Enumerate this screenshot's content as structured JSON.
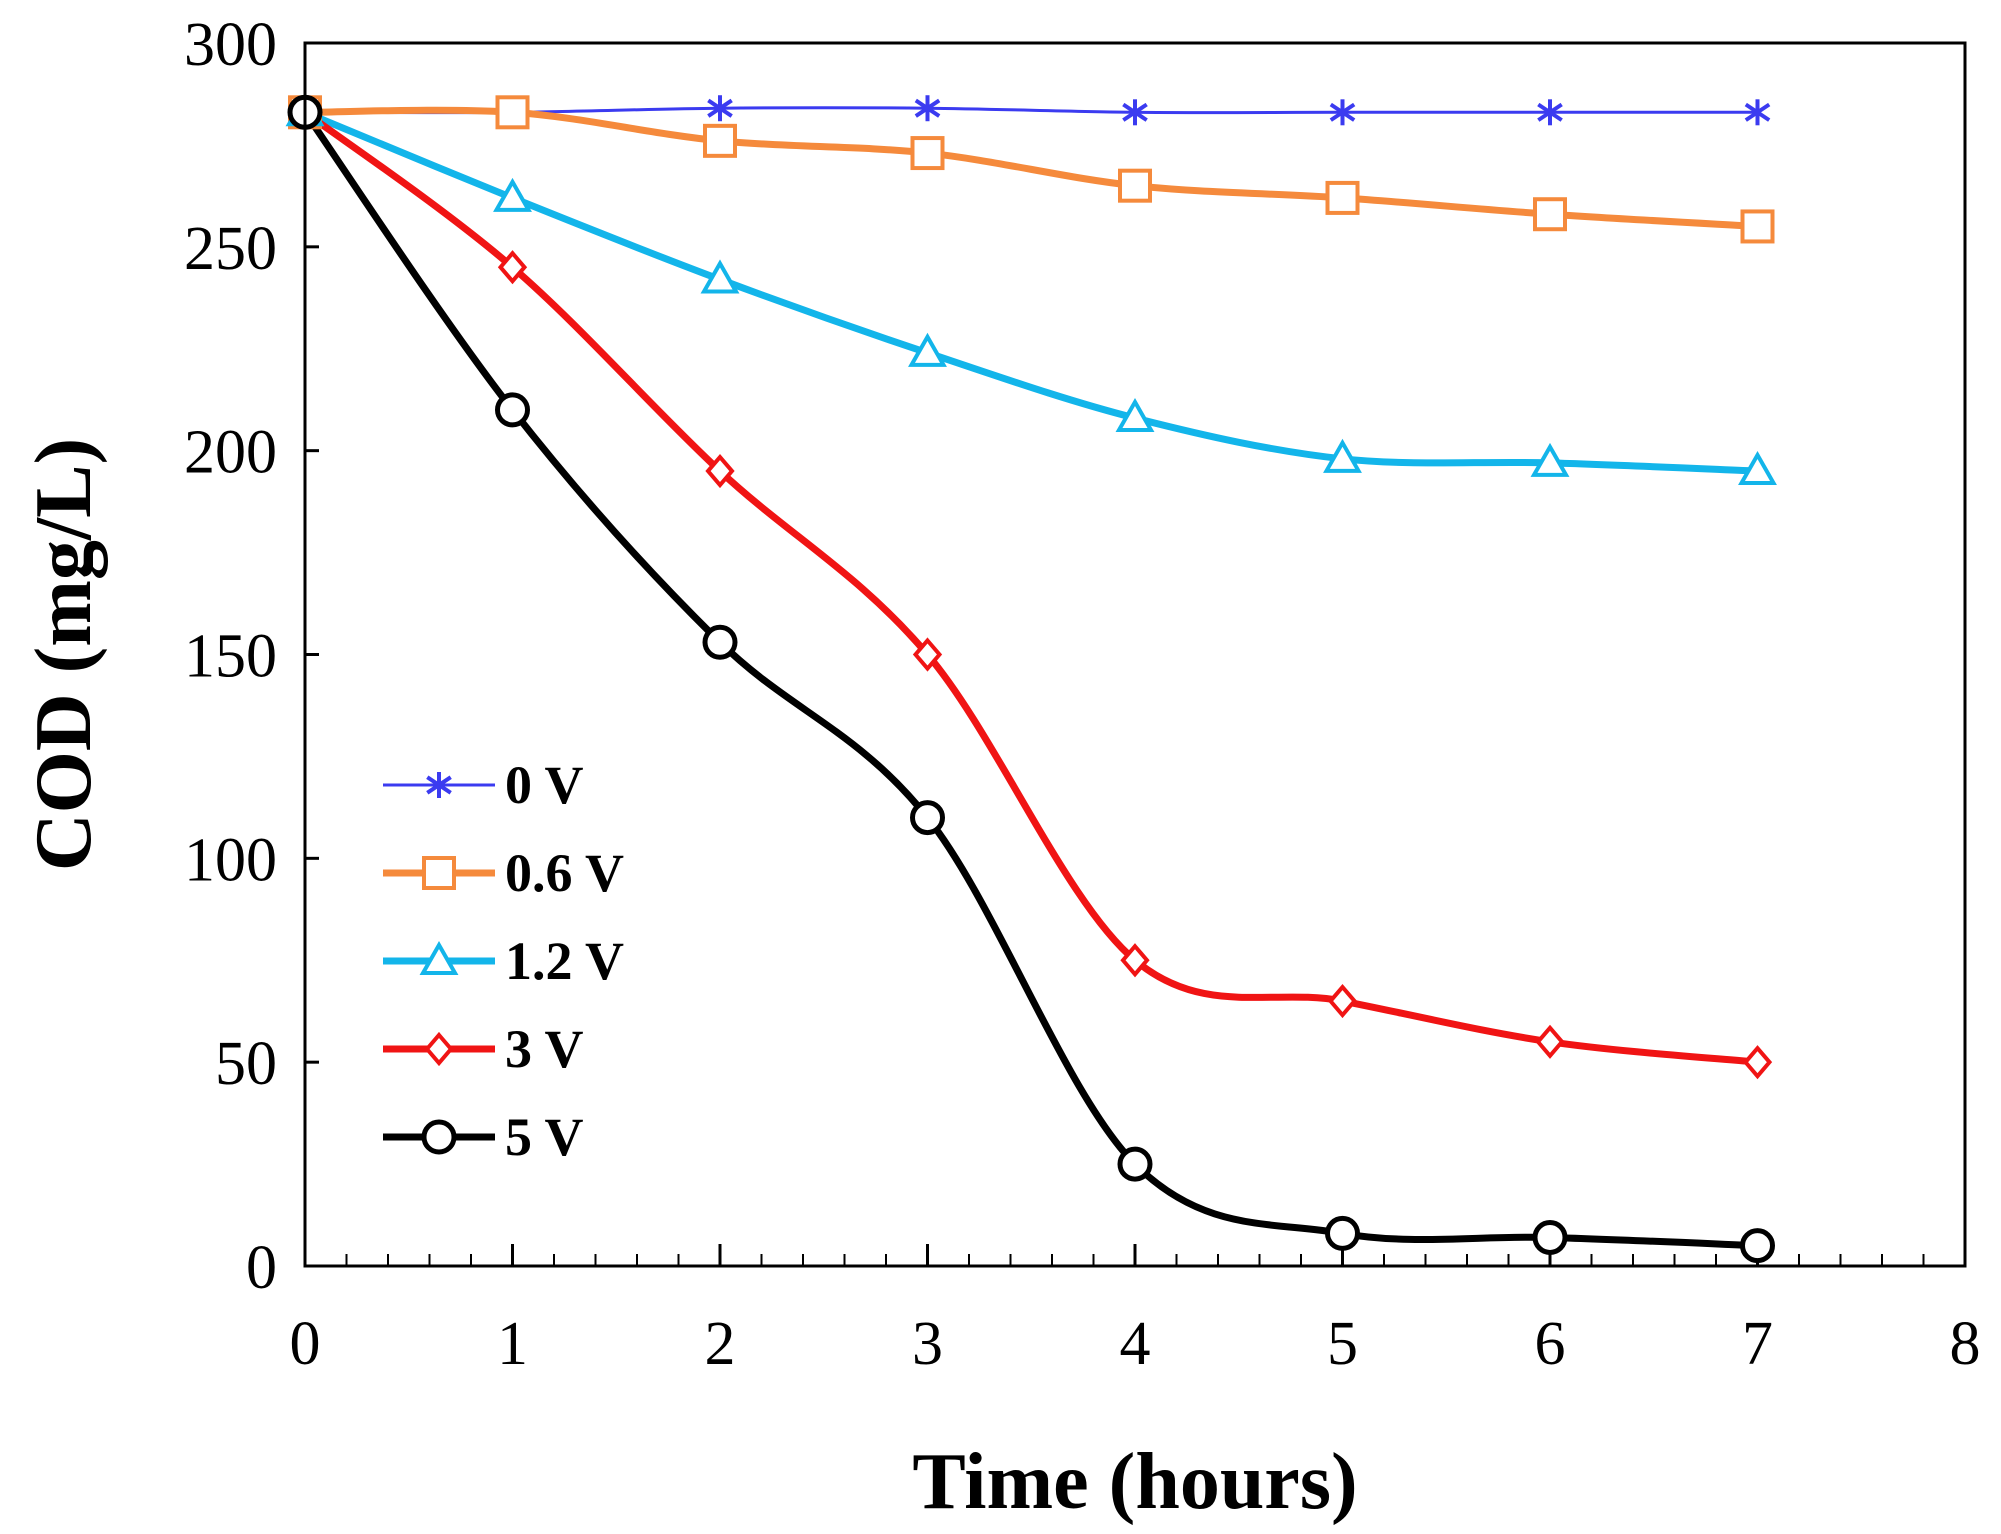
{
  "chart_data": {
    "type": "line",
    "title": "",
    "xlabel": "Time (hours)",
    "ylabel": "COD (mg/L)",
    "xlim": [
      0,
      8
    ],
    "ylim": [
      0,
      300
    ],
    "xticks": [
      0,
      1,
      2,
      3,
      4,
      5,
      6,
      7,
      8
    ],
    "yticks": [
      0,
      50,
      100,
      150,
      200,
      250,
      300
    ],
    "grid": false,
    "legend_position": "bottom-left",
    "x": [
      0,
      1,
      2,
      3,
      4,
      5,
      6,
      7
    ],
    "series": [
      {
        "name": "0 V",
        "color": "#3b3bf0",
        "marker": "asterisk",
        "values": [
          283,
          283,
          284,
          284,
          283,
          283,
          283,
          283
        ]
      },
      {
        "name": "0.6 V",
        "color": "#f58a3c",
        "marker": "square",
        "values": [
          283,
          283,
          276,
          273,
          265,
          262,
          258,
          255
        ]
      },
      {
        "name": "1.2 V",
        "color": "#13b5ea",
        "marker": "triangle",
        "values": [
          283,
          262,
          242,
          224,
          208,
          198,
          197,
          195
        ]
      },
      {
        "name": "3 V",
        "color": "#f01414",
        "marker": "diamond",
        "values": [
          283,
          245,
          195,
          150,
          75,
          65,
          55,
          50
        ]
      },
      {
        "name": "5 V",
        "color": "#000000",
        "marker": "circle",
        "values": [
          283,
          210,
          153,
          110,
          25,
          8,
          7,
          5
        ]
      }
    ]
  }
}
